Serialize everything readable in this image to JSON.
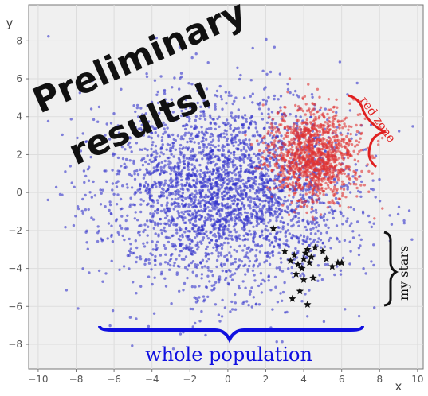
{
  "chart_data": {
    "type": "scatter",
    "xlabel": "x",
    "ylabel": "y",
    "xlim": [
      -10.5,
      10.3
    ],
    "ylim": [
      -9.3,
      9.9
    ],
    "xticks": [
      -10,
      -8,
      -6,
      -4,
      -2,
      0,
      2,
      4,
      6,
      8,
      10
    ],
    "yticks": [
      -8,
      -6,
      -4,
      -2,
      0,
      2,
      4,
      6,
      8
    ],
    "grid": true,
    "series": [
      {
        "color": "#3333cc",
        "marker": "circle",
        "point_count_estimate": 3000,
        "distribution": {
          "center": [
            0,
            0
          ],
          "spread_x": 3.2,
          "spread_y": 2.6
        }
      },
      {
        "color": "#e03333",
        "marker": "circle",
        "point_count_estimate": 1200,
        "distribution": {
          "center": [
            4.5,
            2
          ],
          "spread_x": 1.2,
          "spread_y": 1.2
        }
      },
      {
        "color": "#111111",
        "marker": "star",
        "x": [
          2.4,
          3.3,
          3.5,
          3.7,
          3.9,
          4.0,
          4.1,
          4.2,
          4.3,
          3.6,
          4.0,
          4.5,
          5.0,
          5.2,
          5.5,
          5.8,
          6.0,
          3.8,
          4.2,
          3.4,
          4.4,
          3.0,
          4.6,
          3.9
        ],
        "y": [
          -1.9,
          -3.6,
          -3.3,
          -3.8,
          -4.0,
          -3.5,
          -3.2,
          -3.0,
          -3.7,
          -4.3,
          -4.6,
          -4.5,
          -3.1,
          -3.5,
          -3.9,
          -3.7,
          -3.7,
          -5.2,
          -5.9,
          -5.6,
          -3.4,
          -3.1,
          -2.9,
          -4.0
        ]
      }
    ],
    "annotations": [
      {
        "text": "Preliminary",
        "style": "handwritten"
      },
      {
        "text": "results!",
        "style": "handwritten"
      },
      {
        "text": "red zone",
        "color": "#e02020"
      },
      {
        "text": "my stars",
        "color": "#111111"
      },
      {
        "text": "whole population",
        "color": "#1010e0"
      }
    ]
  }
}
